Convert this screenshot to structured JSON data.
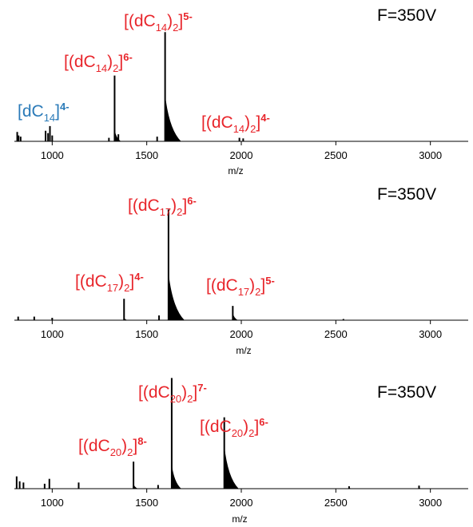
{
  "chart_data": [
    {
      "type": "line",
      "field_label": "F=350V",
      "xlabel": "m/z",
      "ylabel": "",
      "xlim": [
        800,
        3200
      ],
      "xticks": [
        1000,
        1500,
        2000,
        2500,
        3000
      ],
      "xtick_labels": [
        "1000",
        "1500",
        "2000",
        "2500",
        "3000"
      ],
      "axis_color": "#000000",
      "series_color": "#000000",
      "peaks": [
        {
          "mz": 815,
          "height": 0.08
        },
        {
          "mz": 822,
          "height": 0.05
        },
        {
          "mz": 833,
          "height": 0.04
        },
        {
          "mz": 965,
          "height": 0.09
        },
        {
          "mz": 978,
          "height": 0.07
        },
        {
          "mz": 988,
          "height": 0.13
        },
        {
          "mz": 1000,
          "height": 0.05
        },
        {
          "mz": 1300,
          "height": 0.03
        },
        {
          "mz": 1330,
          "height": 0.56,
          "tail": 0.1
        },
        {
          "mz": 1350,
          "height": 0.06
        },
        {
          "mz": 1555,
          "height": 0.04
        },
        {
          "mz": 1597,
          "height": 0.93,
          "tail": 0.4
        },
        {
          "mz": 1990,
          "height": 0.03
        },
        {
          "mz": 2010,
          "height": 0.025
        }
      ],
      "annotations": [
        {
          "species": "dC",
          "subscript": "14",
          "charge": "4-",
          "dimer": false,
          "color": "#2a7ab8"
        },
        {
          "species": "dC",
          "subscript": "14",
          "charge": "6-",
          "dimer": true,
          "color": "#e8252b"
        },
        {
          "species": "dC",
          "subscript": "14",
          "charge": "5-",
          "dimer": true,
          "color": "#e8252b"
        },
        {
          "species": "dC",
          "subscript": "14",
          "charge": "4-",
          "dimer": true,
          "color": "#e8252b"
        }
      ]
    },
    {
      "type": "line",
      "field_label": "F=350V",
      "xlabel": "m/z",
      "ylabel": "",
      "xlim": [
        800,
        3200
      ],
      "xticks": [
        1000,
        1500,
        2000,
        2500,
        3000
      ],
      "xtick_labels": [
        "1000",
        "1500",
        "2000",
        "2500",
        "3000"
      ],
      "axis_color": "#000000",
      "series_color": "#000000",
      "peaks": [
        {
          "mz": 820,
          "height": 0.03
        },
        {
          "mz": 905,
          "height": 0.03
        },
        {
          "mz": 1000,
          "height": 0.02
        },
        {
          "mz": 1380,
          "height": 0.18,
          "tail": 0.02
        },
        {
          "mz": 1565,
          "height": 0.04
        },
        {
          "mz": 1615,
          "height": 0.93,
          "tail": 0.4
        },
        {
          "mz": 1955,
          "height": 0.12,
          "tail": 0.06
        },
        {
          "mz": 2540,
          "height": 0.01
        }
      ],
      "annotations": [
        {
          "species": "dC",
          "subscript": "17",
          "charge": "6-",
          "dimer": true,
          "color": "#e8252b"
        },
        {
          "species": "dC",
          "subscript": "17",
          "charge": "4-",
          "dimer": true,
          "color": "#e8252b"
        },
        {
          "species": "dC",
          "subscript": "17",
          "charge": "5-",
          "dimer": true,
          "color": "#e8252b"
        }
      ]
    },
    {
      "type": "line",
      "field_label": "F=350V",
      "xlabel": "m/z",
      "ylabel": "",
      "xlim": [
        800,
        3200
      ],
      "xticks": [
        1000,
        1500,
        2000,
        2500,
        3000
      ],
      "xtick_labels": [
        "1000",
        "1500",
        "2000",
        "2500",
        "3000"
      ],
      "axis_color": "#000000",
      "series_color": "#000000",
      "peaks": [
        {
          "mz": 812,
          "height": 0.1
        },
        {
          "mz": 828,
          "height": 0.06
        },
        {
          "mz": 848,
          "height": 0.05
        },
        {
          "mz": 960,
          "height": 0.04
        },
        {
          "mz": 985,
          "height": 0.08
        },
        {
          "mz": 1140,
          "height": 0.05
        },
        {
          "mz": 1430,
          "height": 0.22,
          "tail": 0.04
        },
        {
          "mz": 1560,
          "height": 0.03
        },
        {
          "mz": 1632,
          "height": 0.9,
          "tail": 0.2
        },
        {
          "mz": 1910,
          "height": 0.58,
          "tail": 0.35
        },
        {
          "mz": 2570,
          "height": 0.02,
          "tail": 0.01
        },
        {
          "mz": 2940,
          "height": 0.025,
          "tail": 0.01
        }
      ],
      "annotations": [
        {
          "species": "dC",
          "subscript": "20",
          "charge": "7-",
          "dimer": true,
          "color": "#e8252b"
        },
        {
          "species": "dC",
          "subscript": "20",
          "charge": "6-",
          "dimer": true,
          "color": "#e8252b"
        },
        {
          "species": "dC",
          "subscript": "20",
          "charge": "8-",
          "dimer": true,
          "color": "#e8252b"
        }
      ]
    }
  ]
}
